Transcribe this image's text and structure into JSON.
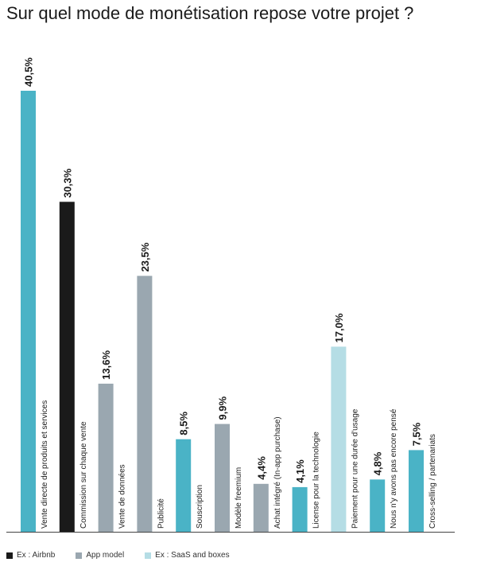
{
  "title": "Sur quel mode de monétisation repose votre projet ?",
  "colors": {
    "teal": "#4ab3c6",
    "black": "#1a1a1a",
    "gray": "#9aa7b0",
    "light_blue": "#b5dde5"
  },
  "legend": [
    {
      "label": "Ex : Airbnb",
      "color": "#1a1a1a"
    },
    {
      "label": "App model",
      "color": "#9aa7b0"
    },
    {
      "label": "Ex : SaaS and boxes",
      "color": "#b5dde5"
    }
  ],
  "chart_data": {
    "type": "bar",
    "title": "Sur quel mode de monétisation repose votre projet ?",
    "xlabel": "",
    "ylabel": "",
    "ylim": [
      0,
      40.5
    ],
    "grid": false,
    "legend_position": "bottom-left",
    "categories": [
      "Vente directe de produits et services",
      "Commission sur chaque vente",
      "Vente de données",
      "Publicité",
      "Souscription",
      "Modèle freemium",
      "Achat intégré (In-app purchase)",
      "License pour la technologie",
      "Paiement pour une durée d'usage",
      "Nous n'y avons pas encore pensé",
      "Cross-selling / partenariats"
    ],
    "values": [
      40.5,
      30.3,
      13.6,
      23.5,
      8.5,
      9.9,
      4.4,
      4.1,
      17.0,
      4.8,
      7.5
    ],
    "value_labels": [
      "40,5%",
      "30,3%",
      "13,6%",
      "23,5%",
      "8,5%",
      "9,9%",
      "4,4%",
      "4,1%",
      "17,0%",
      "4,8%",
      "7,5%"
    ],
    "bar_colors": [
      "#4ab3c6",
      "#1a1a1a",
      "#9aa7b0",
      "#9aa7b0",
      "#4ab3c6",
      "#9aa7b0",
      "#9aa7b0",
      "#4ab3c6",
      "#b5dde5",
      "#4ab3c6",
      "#4ab3c6"
    ]
  }
}
